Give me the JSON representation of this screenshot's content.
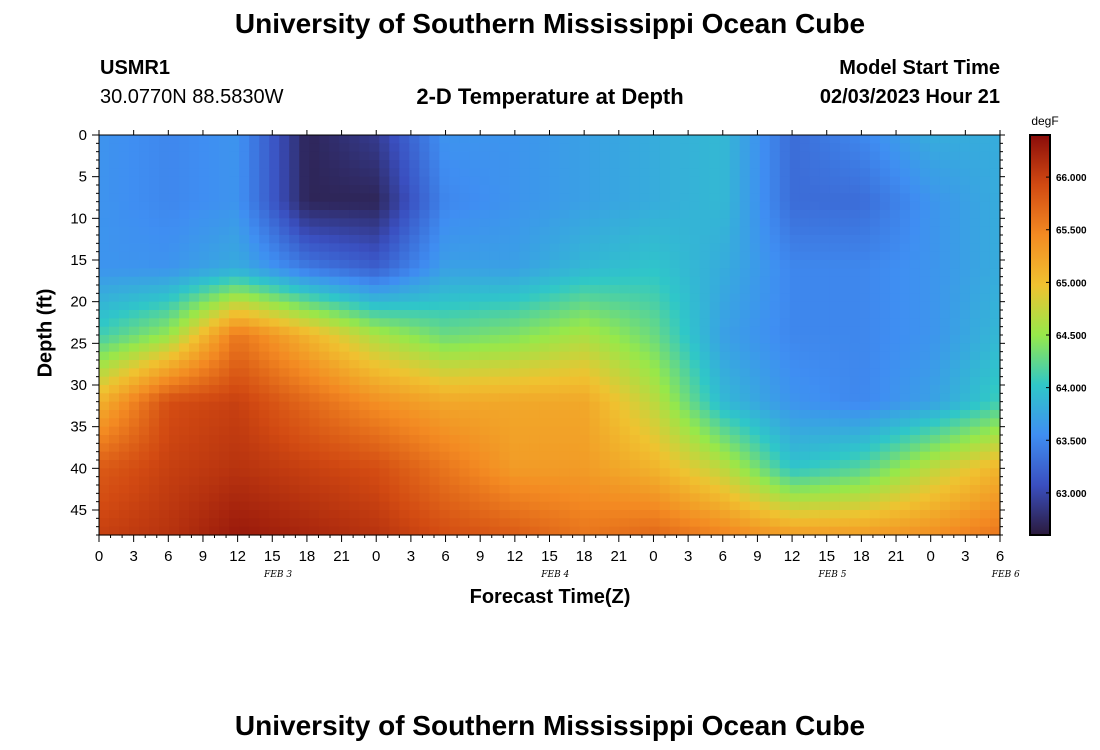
{
  "header": {
    "title": "University of Southern Mississippi Ocean Cube",
    "station_id": "USMR1",
    "coords": "30.0770N  88.5830W",
    "chart_title": "2-D Temperature at Depth",
    "model_start_label": "Model Start Time",
    "model_start_value": "02/03/2023 Hour 21"
  },
  "footer": {
    "title": "University of Southern Mississippi Ocean Cube"
  },
  "chart_data": {
    "type": "heatmap",
    "title": "2-D Temperature at Depth",
    "xlabel": "Forecast Time(Z)",
    "ylabel": "Depth (ft)",
    "x_tick_labels": [
      "0",
      "3",
      "6",
      "9",
      "12",
      "15",
      "18",
      "21",
      "0",
      "3",
      "6",
      "9",
      "12",
      "15",
      "18",
      "21",
      "0",
      "3",
      "6",
      "9",
      "12",
      "15",
      "18",
      "21",
      "0",
      "3",
      "6"
    ],
    "x_range_hours": [
      0,
      78
    ],
    "date_labels": [
      {
        "text": "FEB 3",
        "hour": 15.5
      },
      {
        "text": "FEB 4",
        "hour": 39.5
      },
      {
        "text": "FEB 5",
        "hour": 63.5
      },
      {
        "text": "FEB 6",
        "hour": 78.5
      }
    ],
    "y_ticks": [
      0,
      5,
      10,
      15,
      20,
      25,
      30,
      35,
      40,
      45
    ],
    "y_range_ft": [
      0,
      48
    ],
    "colorbar": {
      "unit": "degF",
      "range": [
        62.6,
        66.4
      ],
      "tick_values": [
        66.0,
        65.5,
        65.0,
        64.5,
        64.0,
        63.5,
        63.0
      ],
      "tick_labels": [
        "66.000",
        "65.500",
        "65.000",
        "64.500",
        "64.000",
        "63.500",
        "63.000"
      ],
      "colors": [
        "#2b1a3c",
        "#3a4fc0",
        "#3f8ef2",
        "#2fc7c8",
        "#97e84a",
        "#f0c230",
        "#f38a22",
        "#d24a12",
        "#8a0c0a"
      ]
    },
    "grid_hours": [
      0,
      6,
      12,
      18,
      24,
      30,
      36,
      42,
      48,
      54,
      60,
      66,
      72,
      78
    ],
    "grid_depths_ft": [
      0,
      8,
      16,
      24,
      32,
      40,
      48
    ],
    "temperature_degF": [
      [
        63.6,
        63.5,
        63.6,
        62.7,
        62.9,
        63.6,
        63.6,
        63.7,
        63.8,
        63.9,
        63.3,
        63.5,
        63.8,
        63.8
      ],
      [
        63.6,
        63.5,
        63.6,
        62.7,
        62.7,
        63.5,
        63.6,
        63.7,
        63.8,
        63.9,
        63.3,
        63.3,
        63.6,
        63.8
      ],
      [
        63.6,
        63.6,
        63.8,
        63.4,
        63.2,
        63.7,
        63.7,
        63.9,
        64.0,
        63.8,
        63.5,
        63.5,
        63.6,
        63.8
      ],
      [
        64.1,
        64.5,
        65.6,
        65.1,
        64.6,
        64.3,
        64.4,
        64.6,
        64.3,
        63.7,
        63.5,
        63.5,
        63.6,
        63.9
      ],
      [
        65.1,
        65.9,
        66.0,
        65.7,
        65.4,
        65.2,
        65.2,
        65.2,
        64.7,
        63.9,
        63.6,
        63.5,
        63.7,
        64.1
      ],
      [
        65.8,
        66.0,
        66.1,
        66.0,
        65.9,
        65.6,
        65.3,
        65.3,
        65.1,
        64.7,
        64.0,
        64.2,
        64.7,
        65.1
      ],
      [
        66.0,
        66.1,
        66.3,
        66.2,
        66.1,
        65.9,
        65.8,
        65.6,
        65.7,
        65.5,
        65.3,
        65.3,
        65.4,
        65.6
      ]
    ]
  }
}
